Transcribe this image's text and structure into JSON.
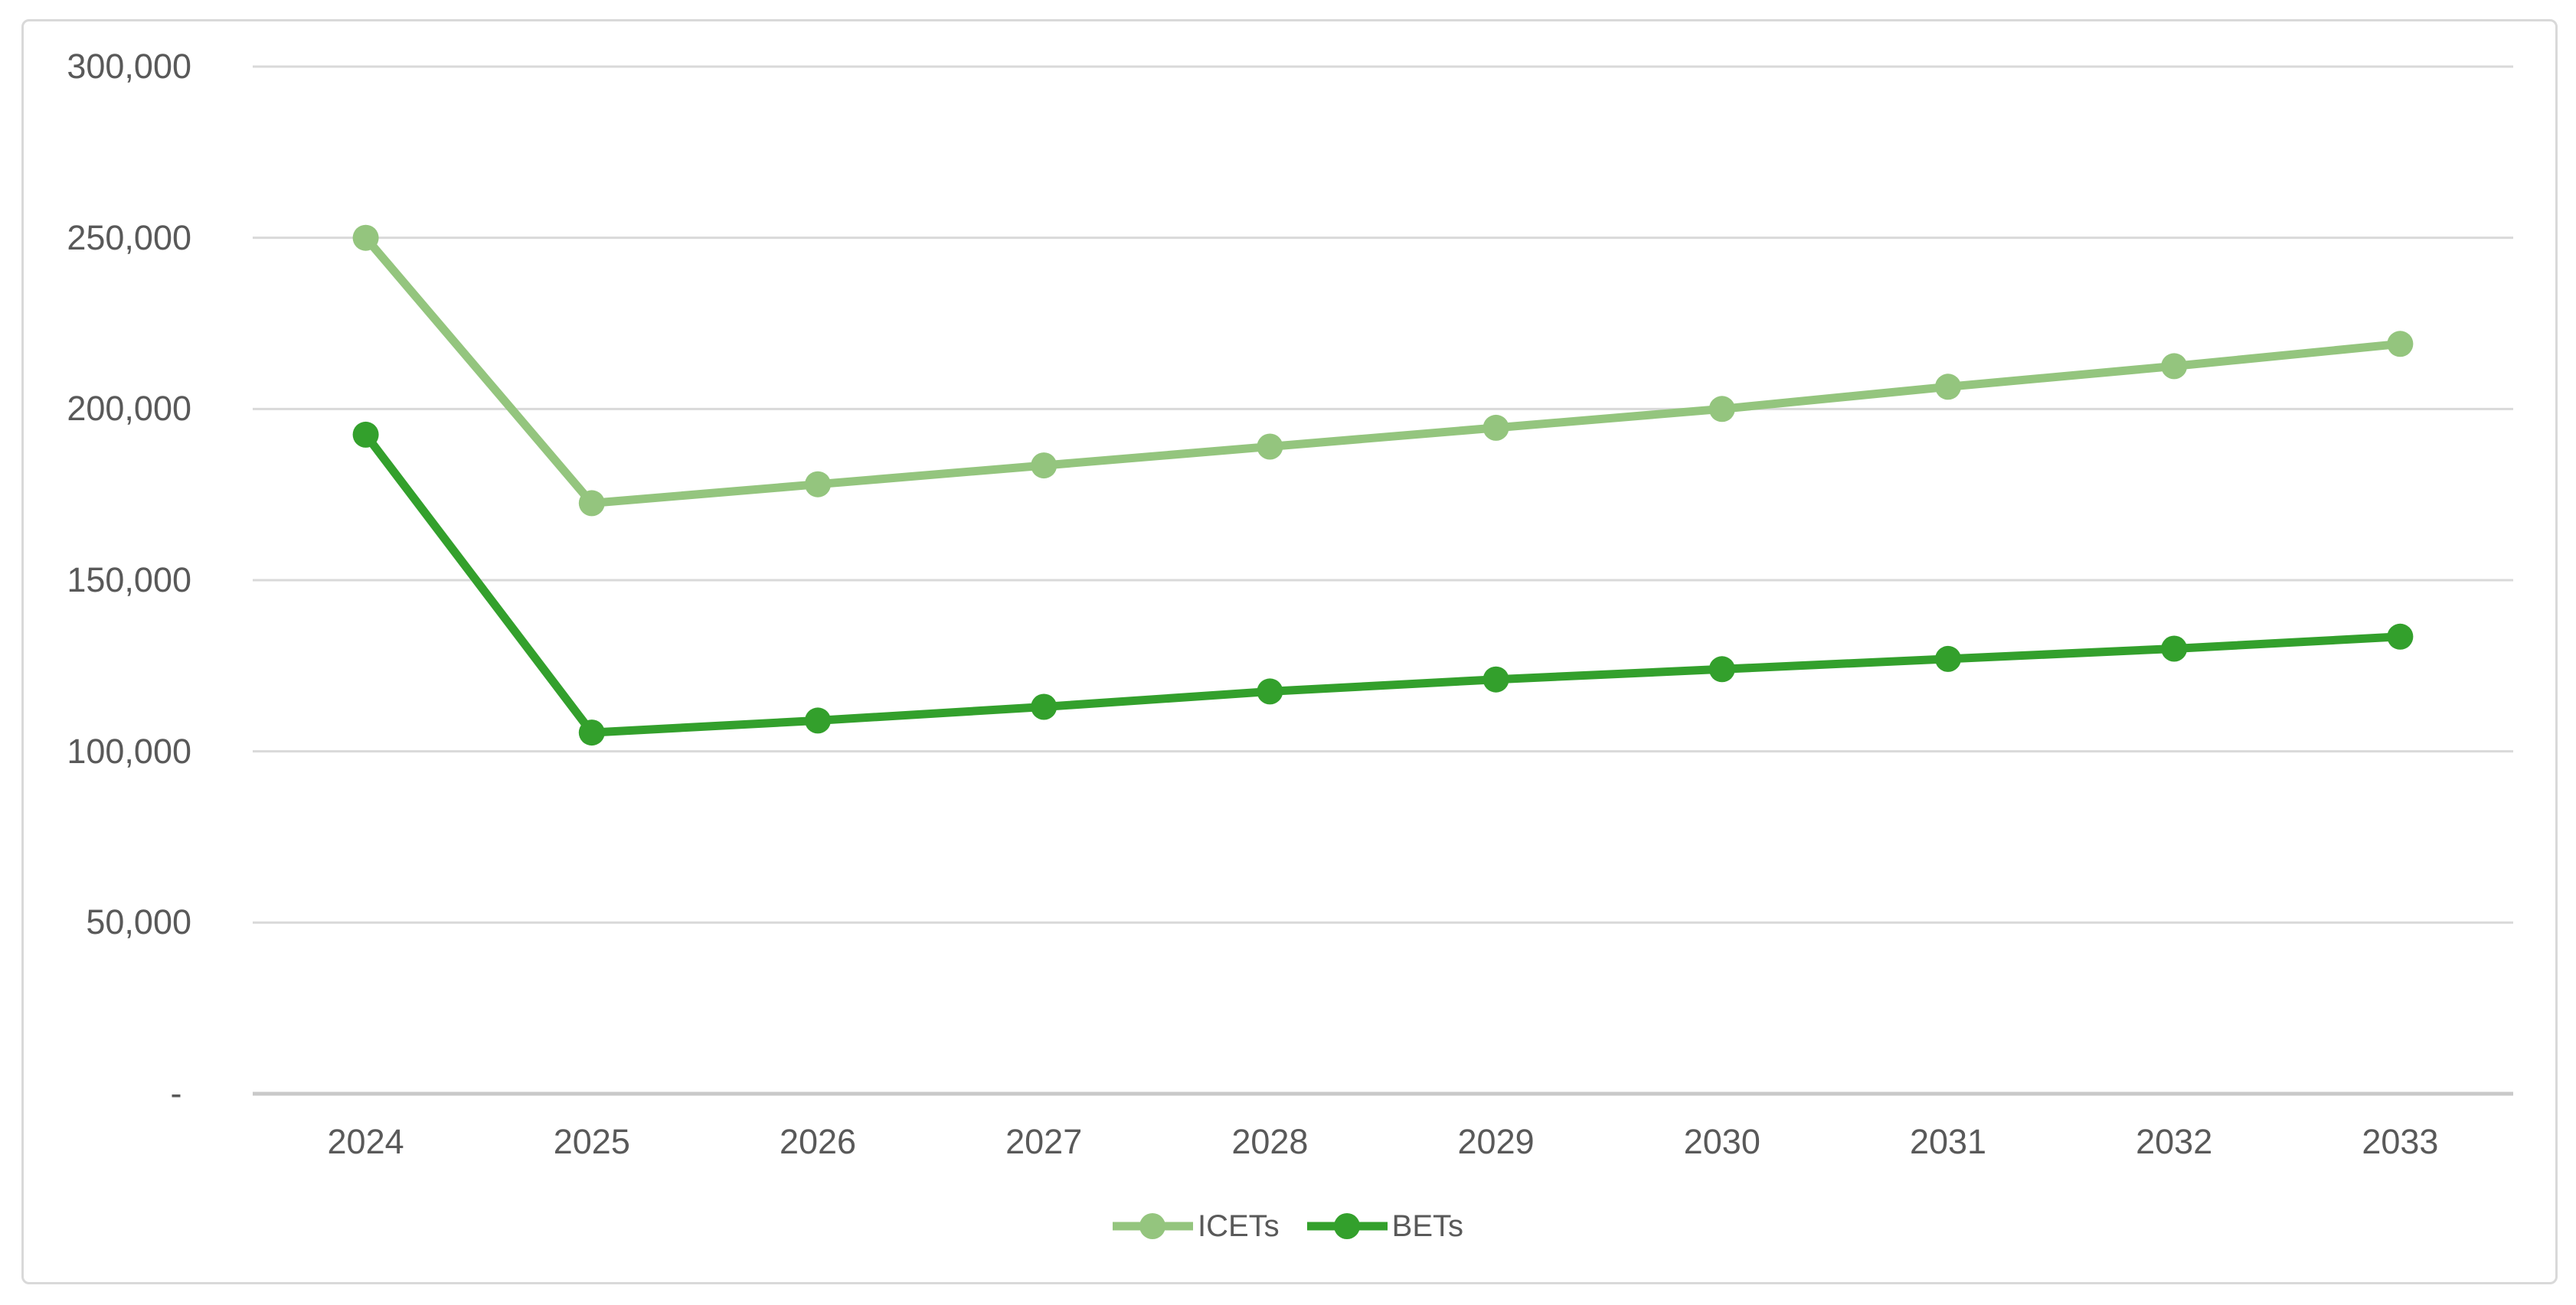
{
  "chart_data": {
    "type": "line",
    "title": "",
    "xlabel": "",
    "ylabel": "",
    "categories": [
      "2024",
      "2025",
      "2026",
      "2027",
      "2028",
      "2029",
      "2030",
      "2031",
      "2032",
      "2033"
    ],
    "series": [
      {
        "name": "ICETs",
        "color": "#94C57E",
        "values": [
          250000,
          172500,
          178000,
          183500,
          189000,
          194500,
          200000,
          206500,
          212500,
          219000
        ]
      },
      {
        "name": "BETs",
        "color": "#33A02C",
        "values": [
          192500,
          105500,
          109000,
          113000,
          117500,
          121000,
          124000,
          127000,
          130000,
          133500
        ]
      }
    ],
    "y_axis": {
      "min": 0,
      "max": 300000,
      "tick_interval": 50000,
      "tick_labels": [
        "- ",
        "50,000",
        "100,000",
        "150,000",
        "200,000",
        "250,000",
        "300,000"
      ]
    },
    "grid": "horizontal-only",
    "legend_position": "bottom-center",
    "colors": {
      "axis_label": "#595959",
      "gridline": "#D9D9D9",
      "axis_line": "#C9C9C9",
      "frame_border": "#D9D9D9",
      "background": "#FFFFFF"
    }
  }
}
